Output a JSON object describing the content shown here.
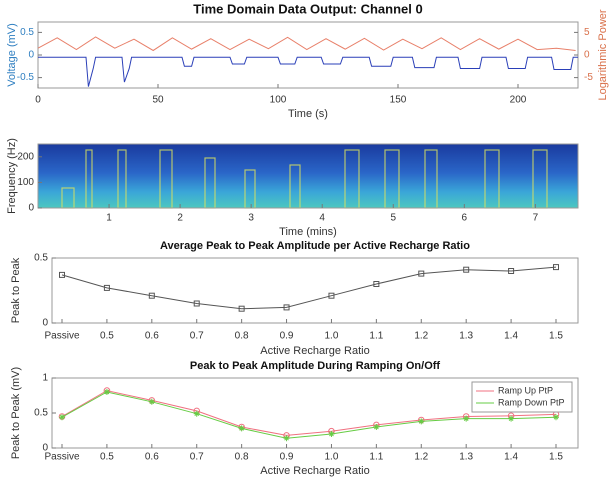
{
  "chart_data": [
    {
      "type": "line",
      "title": "Time Domain Data Output: Channel 0",
      "xlabel": "Time (s)",
      "ylabel": "Voltage (mV)",
      "y2label": "Logarithmic Power",
      "y_axis_color": "#2f7fc1",
      "y2_axis_color": "#d9704a",
      "xlim": [
        0,
        225
      ],
      "xticks": [
        0,
        50,
        100,
        150,
        200
      ],
      "ylim": [
        -0.73,
        0.73
      ],
      "yticks": [
        -0.5,
        0,
        0.5
      ],
      "y2lim": [
        -7.3,
        7.3
      ],
      "y2ticks": [
        -5,
        0,
        5
      ],
      "series": [
        {
          "name": "Voltage",
          "color": "#2a3fb8",
          "x": [
            0,
            20,
            21,
            23,
            24,
            35,
            36,
            38,
            39,
            60,
            61,
            64,
            65,
            80,
            81,
            86,
            87,
            100,
            101,
            107,
            108,
            118,
            119,
            126,
            127,
            138,
            139,
            147,
            148,
            156,
            157,
            165,
            166,
            175,
            176,
            184,
            185,
            195,
            196,
            203,
            204,
            214,
            215,
            222,
            223,
            225
          ],
          "values": [
            -0.05,
            -0.05,
            -0.7,
            -0.3,
            -0.05,
            -0.05,
            -0.6,
            -0.3,
            -0.05,
            -0.05,
            -0.25,
            -0.25,
            -0.05,
            -0.05,
            -0.2,
            -0.2,
            -0.05,
            -0.05,
            -0.2,
            -0.2,
            -0.05,
            -0.05,
            -0.2,
            -0.2,
            -0.05,
            -0.05,
            -0.25,
            -0.25,
            -0.05,
            -0.05,
            -0.28,
            -0.28,
            -0.05,
            -0.05,
            -0.3,
            -0.3,
            -0.05,
            -0.05,
            -0.3,
            -0.3,
            -0.05,
            -0.05,
            -0.32,
            -0.32,
            -0.05,
            -0.05
          ]
        },
        {
          "name": "Logarithmic Power",
          "color": "#e8806a",
          "axis": "y2",
          "x": [
            0,
            8,
            16,
            24,
            32,
            40,
            48,
            56,
            64,
            72,
            80,
            88,
            96,
            104,
            112,
            120,
            128,
            136,
            144,
            152,
            160,
            168,
            176,
            184,
            192,
            200,
            208,
            216,
            224
          ],
          "values": [
            1.5,
            3.8,
            1.2,
            4.0,
            1.5,
            3.5,
            1.0,
            3.8,
            1.3,
            3.6,
            1.2,
            3.5,
            1.4,
            3.9,
            1.2,
            3.6,
            1.3,
            3.7,
            1.1,
            3.5,
            1.4,
            3.8,
            1.2,
            3.6,
            1.3,
            3.5,
            1.2,
            1.5,
            1.0
          ]
        }
      ]
    },
    {
      "type": "spectrogram",
      "xlabel": "Time (mins)",
      "ylabel": "Frequency (Hz)",
      "xlim": [
        0,
        7.6
      ],
      "xticks": [
        1,
        2,
        3,
        4,
        5,
        6,
        7
      ],
      "ylim": [
        0,
        250
      ],
      "yticks": [
        0,
        100,
        200
      ]
    },
    {
      "type": "line",
      "title": "Average Peak to Peak Amplitude per Active Recharge Ratio",
      "xlabel": "Active Recharge Ratio",
      "ylabel": "Peak to Peak",
      "categories": [
        "Passive",
        "0.5",
        "0.6",
        "0.7",
        "0.8",
        "0.9",
        "1.0",
        "1.1",
        "1.2",
        "1.3",
        "1.4",
        "1.5"
      ],
      "ylim": [
        0,
        0.5
      ],
      "yticks": [
        0,
        0.5
      ],
      "series": [
        {
          "name": "Average",
          "color": "#555555",
          "marker": "square",
          "values": [
            0.37,
            0.27,
            0.21,
            0.15,
            0.11,
            0.12,
            0.21,
            0.3,
            0.38,
            0.41,
            0.4,
            0.43
          ]
        }
      ]
    },
    {
      "type": "line",
      "title": "Peak to Peak Amplitude During Ramping On/Off",
      "xlabel": "Active Recharge Ratio",
      "ylabel": "Peak to Peak (mV)",
      "categories": [
        "Passive",
        "0.5",
        "0.6",
        "0.7",
        "0.8",
        "0.9",
        "1.0",
        "1.1",
        "1.2",
        "1.3",
        "1.4",
        "1.5"
      ],
      "ylim": [
        0,
        1
      ],
      "yticks": [
        0,
        0.5,
        1
      ],
      "legend": "northeast",
      "series": [
        {
          "name": "Ramp Up PtP",
          "color": "#f07080",
          "marker": "circle",
          "values": [
            0.45,
            0.82,
            0.68,
            0.53,
            0.3,
            0.18,
            0.24,
            0.33,
            0.4,
            0.45,
            0.46,
            0.48
          ]
        },
        {
          "name": "Ramp Down PtP",
          "color": "#66cc44",
          "marker": "star",
          "values": [
            0.44,
            0.8,
            0.66,
            0.49,
            0.28,
            0.14,
            0.2,
            0.3,
            0.38,
            0.42,
            0.42,
            0.44
          ]
        }
      ]
    }
  ]
}
